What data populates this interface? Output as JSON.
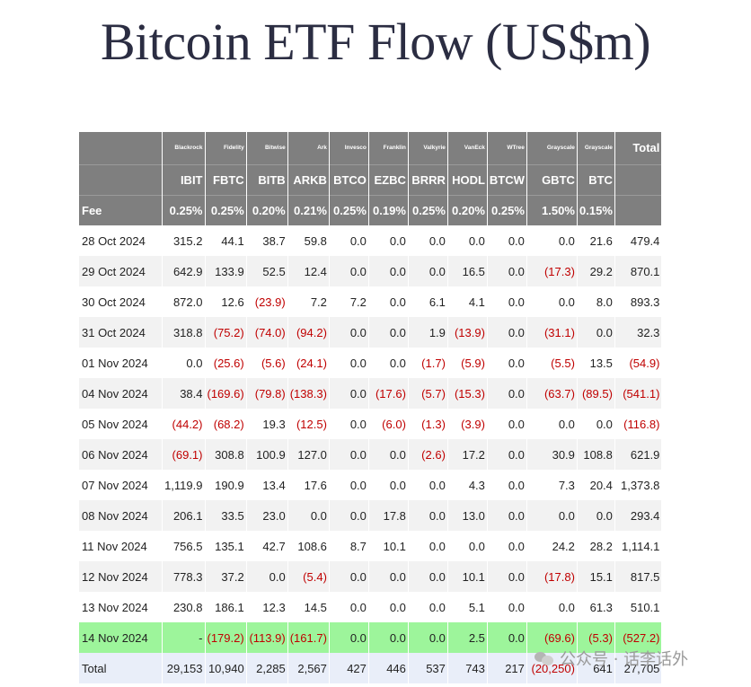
{
  "title": "Bitcoin ETF Flow (US$m)",
  "columns": [
    {
      "issuer": "",
      "ticker": "",
      "fee": "Fee"
    },
    {
      "issuer": "Blackrock",
      "ticker": "IBIT",
      "fee": "0.25%"
    },
    {
      "issuer": "Fidelity",
      "ticker": "FBTC",
      "fee": "0.25%"
    },
    {
      "issuer": "Bitwise",
      "ticker": "BITB",
      "fee": "0.20%"
    },
    {
      "issuer": "Ark",
      "ticker": "ARKB",
      "fee": "0.21%"
    },
    {
      "issuer": "Invesco",
      "ticker": "BTCO",
      "fee": "0.25%"
    },
    {
      "issuer": "Franklin",
      "ticker": "EZBC",
      "fee": "0.19%"
    },
    {
      "issuer": "Valkyrie",
      "ticker": "BRRR",
      "fee": "0.25%"
    },
    {
      "issuer": "VanEck",
      "ticker": "HODL",
      "fee": "0.20%"
    },
    {
      "issuer": "WTree",
      "ticker": "BTCW",
      "fee": "0.25%"
    },
    {
      "issuer": "Grayscale",
      "ticker": "GBTC",
      "fee": "1.50%"
    },
    {
      "issuer": "Grayscale",
      "ticker": "BTC",
      "fee": "0.15%"
    },
    {
      "issuer": "Total",
      "ticker": "",
      "fee": ""
    }
  ],
  "rows": [
    {
      "date": "28 Oct 2024",
      "values": [
        "315.2",
        "44.1",
        "38.7",
        "59.8",
        "0.0",
        "0.0",
        "0.0",
        "0.0",
        "0.0",
        "0.0",
        "21.6",
        "479.4"
      ]
    },
    {
      "date": "29 Oct 2024",
      "values": [
        "642.9",
        "133.9",
        "52.5",
        "12.4",
        "0.0",
        "0.0",
        "0.0",
        "16.5",
        "0.0",
        "(17.3)",
        "29.2",
        "870.1"
      ]
    },
    {
      "date": "30 Oct 2024",
      "values": [
        "872.0",
        "12.6",
        "(23.9)",
        "7.2",
        "7.2",
        "0.0",
        "6.1",
        "4.1",
        "0.0",
        "0.0",
        "8.0",
        "893.3"
      ]
    },
    {
      "date": "31 Oct 2024",
      "values": [
        "318.8",
        "(75.2)",
        "(74.0)",
        "(94.2)",
        "0.0",
        "0.0",
        "1.9",
        "(13.9)",
        "0.0",
        "(31.1)",
        "0.0",
        "32.3"
      ]
    },
    {
      "date": "01 Nov 2024",
      "values": [
        "0.0",
        "(25.6)",
        "(5.6)",
        "(24.1)",
        "0.0",
        "0.0",
        "(1.7)",
        "(5.9)",
        "0.0",
        "(5.5)",
        "13.5",
        "(54.9)"
      ]
    },
    {
      "date": "04 Nov 2024",
      "values": [
        "38.4",
        "(169.6)",
        "(79.8)",
        "(138.3)",
        "0.0",
        "(17.6)",
        "(5.7)",
        "(15.3)",
        "0.0",
        "(63.7)",
        "(89.5)",
        "(541.1)"
      ]
    },
    {
      "date": "05 Nov 2024",
      "values": [
        "(44.2)",
        "(68.2)",
        "19.3",
        "(12.5)",
        "0.0",
        "(6.0)",
        "(1.3)",
        "(3.9)",
        "0.0",
        "0.0",
        "0.0",
        "(116.8)"
      ]
    },
    {
      "date": "06 Nov 2024",
      "values": [
        "(69.1)",
        "308.8",
        "100.9",
        "127.0",
        "0.0",
        "0.0",
        "(2.6)",
        "17.2",
        "0.0",
        "30.9",
        "108.8",
        "621.9"
      ]
    },
    {
      "date": "07 Nov 2024",
      "values": [
        "1,119.9",
        "190.9",
        "13.4",
        "17.6",
        "0.0",
        "0.0",
        "0.0",
        "4.3",
        "0.0",
        "7.3",
        "20.4",
        "1,373.8"
      ]
    },
    {
      "date": "08 Nov 2024",
      "values": [
        "206.1",
        "33.5",
        "23.0",
        "0.0",
        "0.0",
        "17.8",
        "0.0",
        "13.0",
        "0.0",
        "0.0",
        "0.0",
        "293.4"
      ]
    },
    {
      "date": "11 Nov 2024",
      "values": [
        "756.5",
        "135.1",
        "42.7",
        "108.6",
        "8.7",
        "10.1",
        "0.0",
        "0.0",
        "0.0",
        "24.2",
        "28.2",
        "1,114.1"
      ]
    },
    {
      "date": "12 Nov 2024",
      "values": [
        "778.3",
        "37.2",
        "0.0",
        "(5.4)",
        "0.0",
        "0.0",
        "0.0",
        "10.1",
        "0.0",
        "(17.8)",
        "15.1",
        "817.5"
      ]
    },
    {
      "date": "13 Nov 2024",
      "values": [
        "230.8",
        "186.1",
        "12.3",
        "14.5",
        "0.0",
        "0.0",
        "0.0",
        "5.1",
        "0.0",
        "0.0",
        "61.3",
        "510.1"
      ]
    },
    {
      "date": "14 Nov 2024",
      "values": [
        "-",
        "(179.2)",
        "(113.9)",
        "(161.7)",
        "0.0",
        "0.0",
        "0.0",
        "2.5",
        "0.0",
        "(69.6)",
        "(5.3)",
        "(527.2)"
      ]
    }
  ],
  "highlight_row_index": 13,
  "total_row": {
    "label": "Total",
    "values": [
      "29,153",
      "10,940",
      "2,285",
      "2,567",
      "427",
      "446",
      "537",
      "743",
      "217",
      "(20,250)",
      "641",
      "27,705"
    ]
  },
  "watermark": "公众号 · 话李话外",
  "colors": {
    "header_bg": "#7f7f7f",
    "header_text": "#ffffff",
    "negative": "#c00000",
    "highlight_row": "#9df59b",
    "total_row": "#e9eef9",
    "stripe": "#f2f2f2"
  }
}
